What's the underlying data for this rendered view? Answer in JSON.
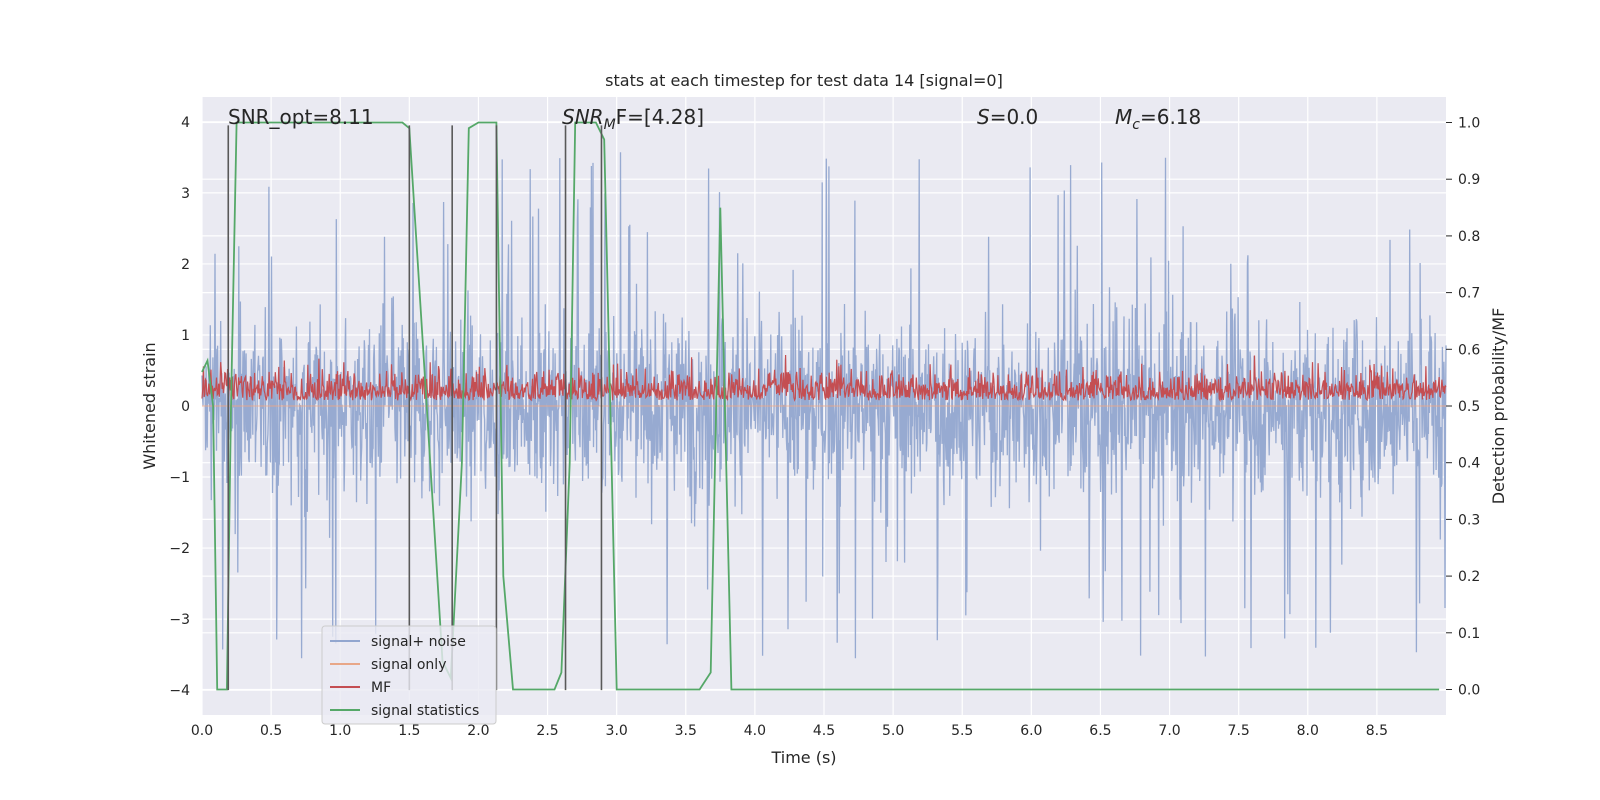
{
  "chart_data": {
    "type": "line",
    "title": "stats at each timestep for test data 14 [signal=0]",
    "xlabel": "Time (s)",
    "ylabel": "Whitened strain",
    "ylabel_right": "Detection probability/MF",
    "xlim": [
      0.0,
      9.0
    ],
    "ylim": [
      -4.35,
      4.35
    ],
    "ylim_right": [
      -0.045,
      1.045
    ],
    "x_ticks": [
      0.0,
      0.5,
      1.0,
      1.5,
      2.0,
      2.5,
      3.0,
      3.5,
      4.0,
      4.5,
      5.0,
      5.5,
      6.0,
      6.5,
      7.0,
      7.5,
      8.0,
      8.5
    ],
    "x_tick_labels": [
      "0.0",
      "0.5",
      "1.0",
      "1.5",
      "2.0",
      "2.5",
      "3.0",
      "3.5",
      "4.0",
      "4.5",
      "5.0",
      "5.5",
      "6.0",
      "6.5",
      "7.0",
      "7.5",
      "8.0",
      "8.5"
    ],
    "y_ticks": [
      4,
      3,
      2,
      1,
      0,
      -1,
      -2,
      -3,
      -4
    ],
    "y_tick_labels": [
      "4",
      "3",
      "2",
      "1",
      "0",
      "−1",
      "−2",
      "−3",
      "−4"
    ],
    "y_right_ticks": [
      1.0,
      0.9,
      0.8,
      0.7,
      0.6,
      0.5,
      0.4,
      0.3,
      0.2,
      0.1,
      0.0
    ],
    "y_right_tick_labels": [
      "1.0",
      "0.9",
      "0.8",
      "0.7",
      "0.6",
      "0.5",
      "0.4",
      "0.3",
      "0.2",
      "0.1",
      "0.0"
    ],
    "grid": true,
    "legend_position": "lower-left",
    "annotations": {
      "snr_opt": "SNR_opt=8.11",
      "snr_mf_var": "SNR",
      "snr_mf_sub": "M",
      "snr_mf_rest": "F=[4.28]",
      "s_var": "S",
      "s_rest": "=0.0",
      "mc_var": "M",
      "mc_sub": "c",
      "mc_rest": "=6.18"
    },
    "vertical_lines_x": [
      0.19,
      1.5,
      1.81,
      2.13,
      2.63,
      2.89
    ],
    "series": [
      {
        "name": "signal+ noise",
        "axis": "left",
        "color": "#92a6cf",
        "description_of_range": [
          -3.9,
          4.0
        ]
      },
      {
        "name": "signal only",
        "axis": "left",
        "color": "#e8a788",
        "x": [
          0.0,
          9.0
        ],
        "y": [
          0.0,
          0.0
        ]
      },
      {
        "name": "MF",
        "axis": "right",
        "color": "#c44e52",
        "range": [
          0.5,
          0.63
        ]
      },
      {
        "name": "signal statistics",
        "axis": "right",
        "color": "#55a868",
        "x": [
          0.0,
          0.04,
          0.08,
          0.11,
          0.18,
          0.21,
          0.25,
          0.3,
          0.6,
          1.0,
          1.3,
          1.45,
          1.5,
          1.6,
          1.74,
          1.8,
          1.88,
          1.93,
          2.0,
          2.13,
          2.18,
          2.25,
          2.55,
          2.6,
          2.66,
          2.7,
          2.85,
          2.91,
          3.0,
          3.6,
          3.68,
          3.75,
          3.83,
          4.0,
          5.0,
          6.0,
          7.0,
          8.0,
          8.95
        ],
        "y": [
          0.56,
          0.58,
          0.5,
          0.0,
          0.0,
          0.5,
          1.0,
          1.0,
          1.0,
          1.0,
          1.0,
          1.0,
          0.99,
          0.6,
          0.05,
          0.02,
          0.4,
          0.99,
          1.0,
          1.0,
          0.2,
          0.0,
          0.0,
          0.03,
          0.4,
          1.0,
          1.0,
          0.97,
          0.0,
          0.0,
          0.03,
          0.85,
          0.0,
          0.0,
          0.0,
          0.0,
          0.0,
          0.0,
          0.0
        ]
      }
    ],
    "colors": {
      "axes_bg": "#eaeaf2",
      "grid": "#ffffff",
      "vline": "#595959",
      "text": "#262626"
    }
  }
}
